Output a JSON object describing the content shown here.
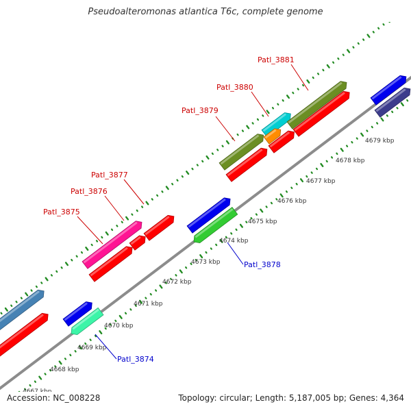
{
  "title": "Pseudoalteromonas atlantica T6c, complete genome",
  "footer": {
    "accession": "Accession: NC_008228",
    "summary": "Topology: circular; Length: 5,187,005 bp; Genes: 4,364"
  },
  "colors": {
    "backbone": "#8c8c8c",
    "ticks": "#228b22",
    "top_label": "#cc0000",
    "bottom_label": "#0000cc"
  },
  "kbp_ticks": [
    {
      "label": "4667 kbp"
    },
    {
      "label": "4668 kbp"
    },
    {
      "label": "4669 kbp"
    },
    {
      "label": "4670 kbp"
    },
    {
      "label": "4671 kbp"
    },
    {
      "label": "4672 kbp"
    },
    {
      "label": "4673 kbp"
    },
    {
      "label": "4674 kbp"
    },
    {
      "label": "4675 kbp"
    },
    {
      "label": "4676 kbp"
    },
    {
      "label": "4677 kbp"
    },
    {
      "label": "4678 kbp"
    },
    {
      "label": "4679 kbp"
    }
  ],
  "gene_labels": [
    {
      "text": "Patl_3875",
      "strand": "top"
    },
    {
      "text": "Patl_3876",
      "strand": "top"
    },
    {
      "text": "Patl_3877",
      "strand": "top"
    },
    {
      "text": "Patl_3879",
      "strand": "top"
    },
    {
      "text": "Patl_3880",
      "strand": "top"
    },
    {
      "text": "Patl_3881",
      "strand": "top"
    },
    {
      "text": "Patl_3874",
      "strand": "bottom"
    },
    {
      "text": "Patl_3878",
      "strand": "bottom"
    }
  ],
  "feature_colors": {
    "red": "#ff0000",
    "blue": "#0000ee",
    "steelblue": "#4682b4",
    "aquamarine": "#3cf5a8",
    "green": "#33cc33",
    "pink": "#ff1493",
    "olive": "#6b8e23",
    "cyan": "#00ced1",
    "orange": "#ff8c00",
    "navy": "#3c3c8c"
  }
}
